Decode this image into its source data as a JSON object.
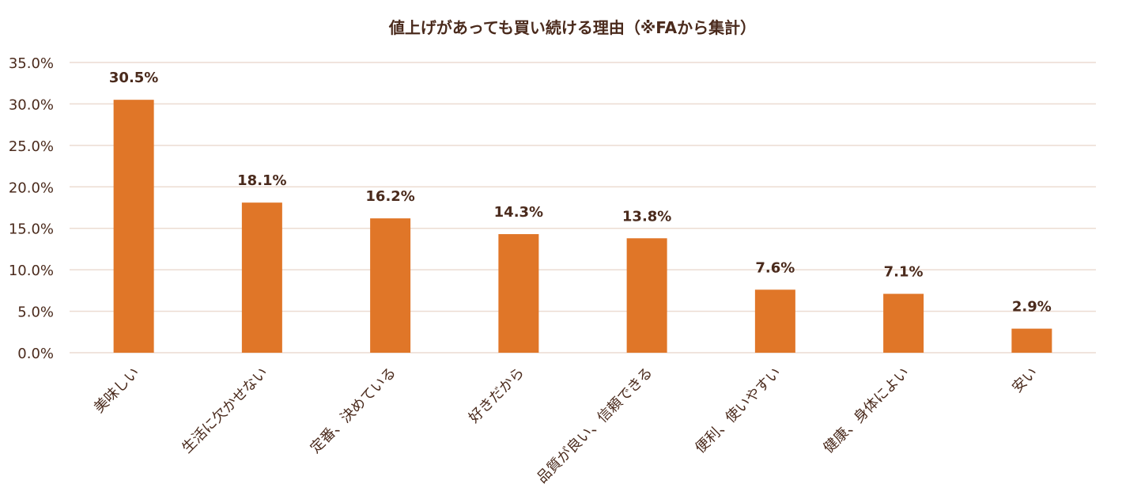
{
  "chart_data": {
    "type": "bar",
    "title": "値上げがあっても買い続ける理由（※FAから集計）",
    "xlabel": "",
    "ylabel": "",
    "categories": [
      "美味しい",
      "生活に欠かせない",
      "定番、決めている",
      "好きだから",
      "品質が良い、信頼できる",
      "便利、使いやすい",
      "健康、身体によい",
      "安い"
    ],
    "values": [
      30.5,
      18.1,
      16.2,
      14.3,
      13.8,
      7.6,
      7.1,
      2.9
    ],
    "data_labels": [
      "30.5%",
      "18.1%",
      "16.2%",
      "14.3%",
      "13.8%",
      "7.6%",
      "7.1%",
      "2.9%"
    ],
    "ylim": [
      0,
      35
    ],
    "yticks": [
      0,
      5,
      10,
      15,
      20,
      25,
      30,
      35
    ],
    "ytick_labels": [
      "0.0%",
      "5.0%",
      "10.0%",
      "15.0%",
      "20.0%",
      "25.0%",
      "30.0%",
      "35.0%"
    ],
    "grid": true,
    "legend": "none",
    "bar_color": "#e07628",
    "text_color": "#4a2a1c",
    "grid_color": "#ecdcd2"
  }
}
